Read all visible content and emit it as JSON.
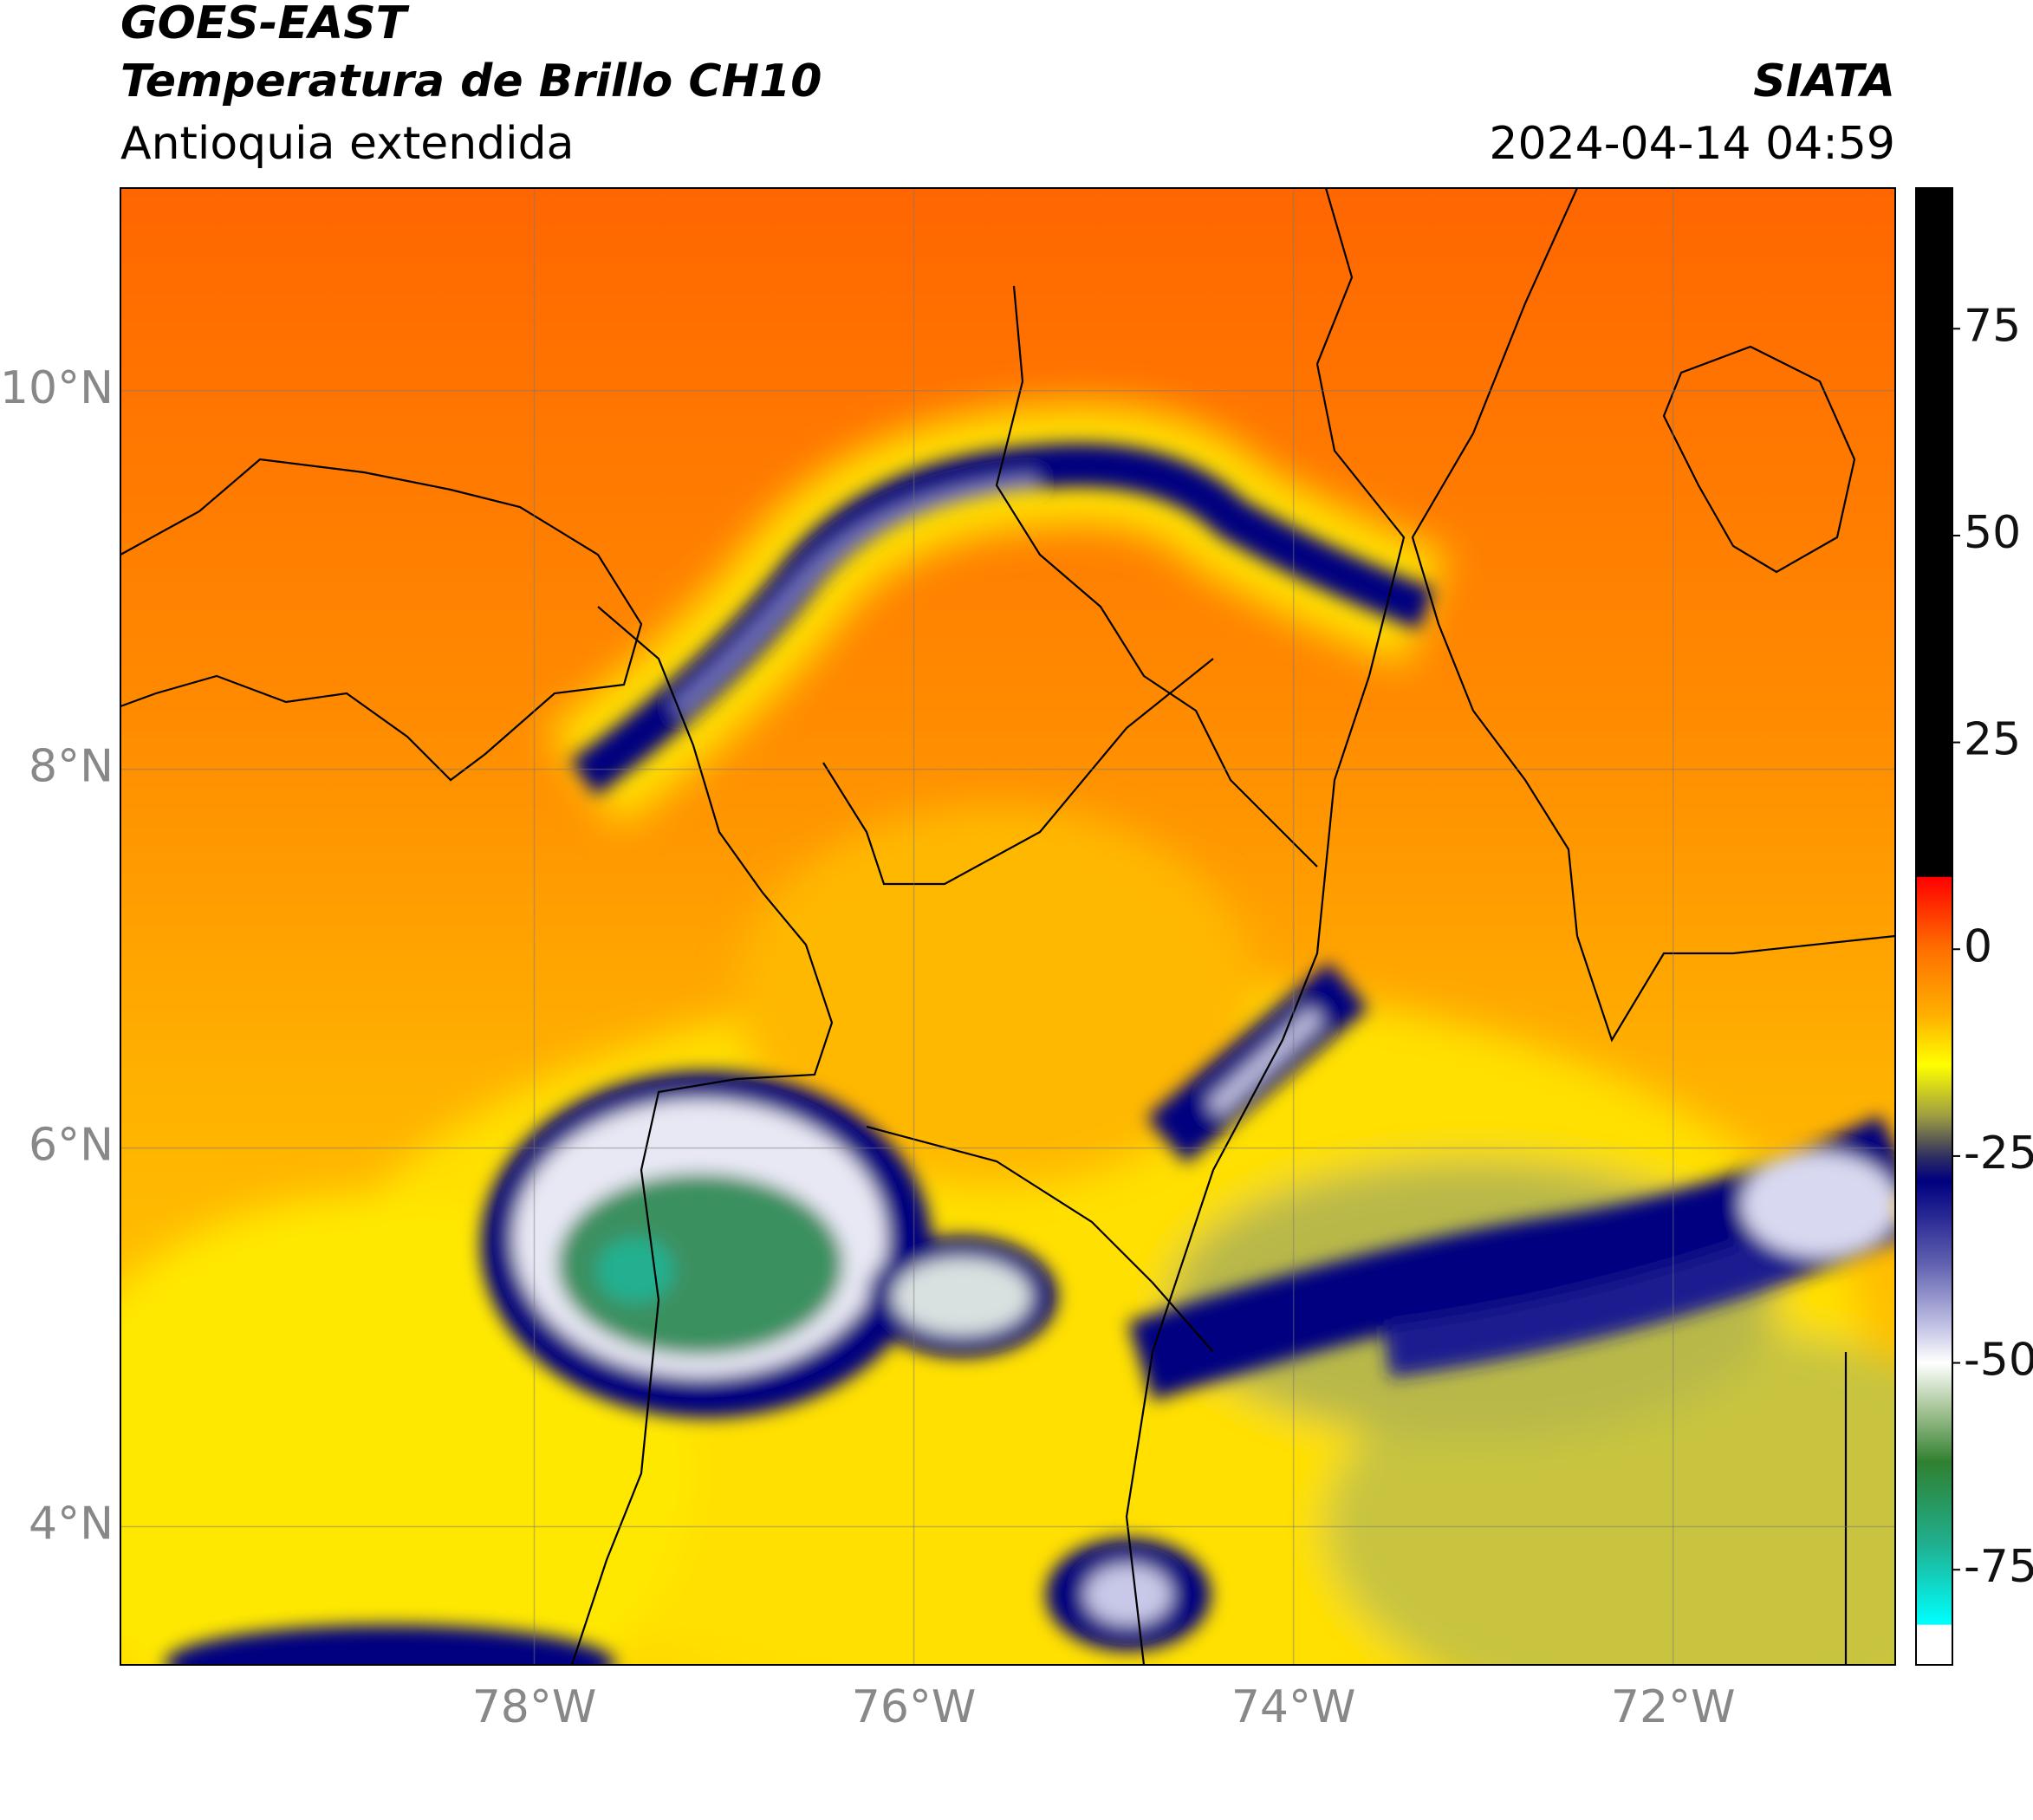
{
  "chart_data": {
    "type": "map",
    "title": "GOES-EAST",
    "subtitle": "Temperatura de Brillo CH10",
    "annotations": [
      "Antioquia extendida",
      "SIATA",
      "2024-04-14 04:59"
    ],
    "xlim": [
      -80.18,
      -70.83
    ],
    "ylim": [
      3.27,
      11.07
    ],
    "xticks": [
      {
        "value": -78,
        "label": "78°W"
      },
      {
        "value": -76,
        "label": "76°W"
      },
      {
        "value": -74,
        "label": "74°W"
      },
      {
        "value": -72,
        "label": "72°W"
      }
    ],
    "yticks": [
      {
        "value": 4,
        "label": "4°N"
      },
      {
        "value": 6,
        "label": "6°N"
      },
      {
        "value": 8,
        "label": "8°N"
      },
      {
        "value": 10,
        "label": "10°N"
      }
    ],
    "grid": true,
    "colorbar": {
      "lim": [
        -86.5,
        92
      ],
      "ticks": [
        75,
        50,
        25,
        0,
        -25,
        -50,
        -75
      ],
      "colormap": [
        {
          "value": 92,
          "color": "#000000"
        },
        {
          "value": 8.8,
          "color": "#000000"
        },
        {
          "value": 8.7,
          "color": "#ff0000"
        },
        {
          "value": 3,
          "color": "#ff4a00"
        },
        {
          "value": 0,
          "color": "#ff7000"
        },
        {
          "value": -8,
          "color": "#ffb000"
        },
        {
          "value": -14,
          "color": "#ffff00"
        },
        {
          "value": -20,
          "color": "#a0a040"
        },
        {
          "value": -25,
          "color": "#303060"
        },
        {
          "value": -28,
          "color": "#000080"
        },
        {
          "value": -38,
          "color": "#6060b0"
        },
        {
          "value": -46,
          "color": "#c8c8e8"
        },
        {
          "value": -50,
          "color": "#ffffff"
        },
        {
          "value": -56,
          "color": "#a0c090"
        },
        {
          "value": -62,
          "color": "#308030"
        },
        {
          "value": -72,
          "color": "#20b090"
        },
        {
          "value": -81.6,
          "color": "#00ffff"
        },
        {
          "value": -81.7,
          "color": "#ffffff"
        },
        {
          "value": -86.5,
          "color": "#ffffff"
        }
      ]
    }
  }
}
